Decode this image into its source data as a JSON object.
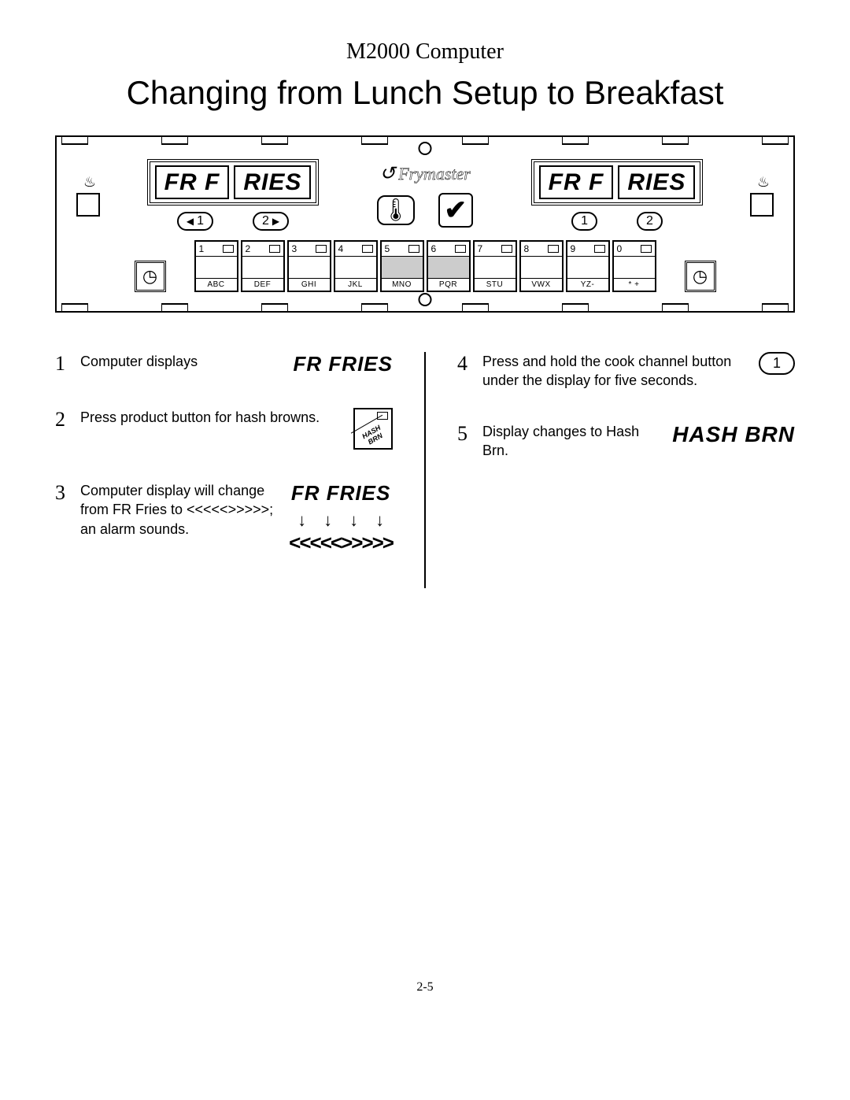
{
  "header": {
    "small": "M2000 Computer",
    "large": "Changing from Lunch Setup to Breakfast"
  },
  "panel": {
    "brand": "Frymaster",
    "left_display": [
      "FR F",
      "RIES"
    ],
    "right_display": [
      "FR F",
      "RIES"
    ],
    "cook_buttons_left": [
      "1",
      "2"
    ],
    "cook_buttons_right": [
      "1",
      "2"
    ],
    "thermometer": "🌡",
    "check": "✔",
    "keys": [
      {
        "n": "1",
        "l": "ABC",
        "hl": false
      },
      {
        "n": "2",
        "l": "DEF",
        "hl": false
      },
      {
        "n": "3",
        "l": "GHI",
        "hl": false
      },
      {
        "n": "4",
        "l": "JKL",
        "hl": false
      },
      {
        "n": "5",
        "l": "MNO",
        "hl": true
      },
      {
        "n": "6",
        "l": "PQR",
        "hl": true
      },
      {
        "n": "7",
        "l": "STU",
        "hl": false
      },
      {
        "n": "8",
        "l": "VWX",
        "hl": false
      },
      {
        "n": "9",
        "l": "YZ-",
        "hl": false
      },
      {
        "n": "0",
        "l": "*  +",
        "hl": false
      }
    ]
  },
  "steps_left": [
    {
      "n": "1",
      "text": "Computer displays",
      "disp": "FR  FRIES",
      "kind": "disp"
    },
    {
      "n": "2",
      "text": "Press product button for hash browns.",
      "kind": "minikey",
      "minikey": "HASH BRN"
    },
    {
      "n": "3",
      "text": "Computer display will change from  FR Fries to <<<<<>>>>>; an alarm sounds.",
      "kind": "disp-arrows",
      "disp": "FR  FRIES",
      "sym": "<<<<<>>>>>"
    }
  ],
  "steps_right": [
    {
      "n": "4",
      "text": "Press and hold the cook channel button under the display for five seconds.",
      "kind": "round",
      "round": "1"
    },
    {
      "n": "5",
      "text": "Display changes to Hash Brn.",
      "kind": "hash",
      "hash": "HASH BRN"
    }
  ],
  "page_num": "2-5",
  "colors": {
    "hl": "#cccccc",
    "fg": "#000000",
    "bg": "#ffffff"
  }
}
